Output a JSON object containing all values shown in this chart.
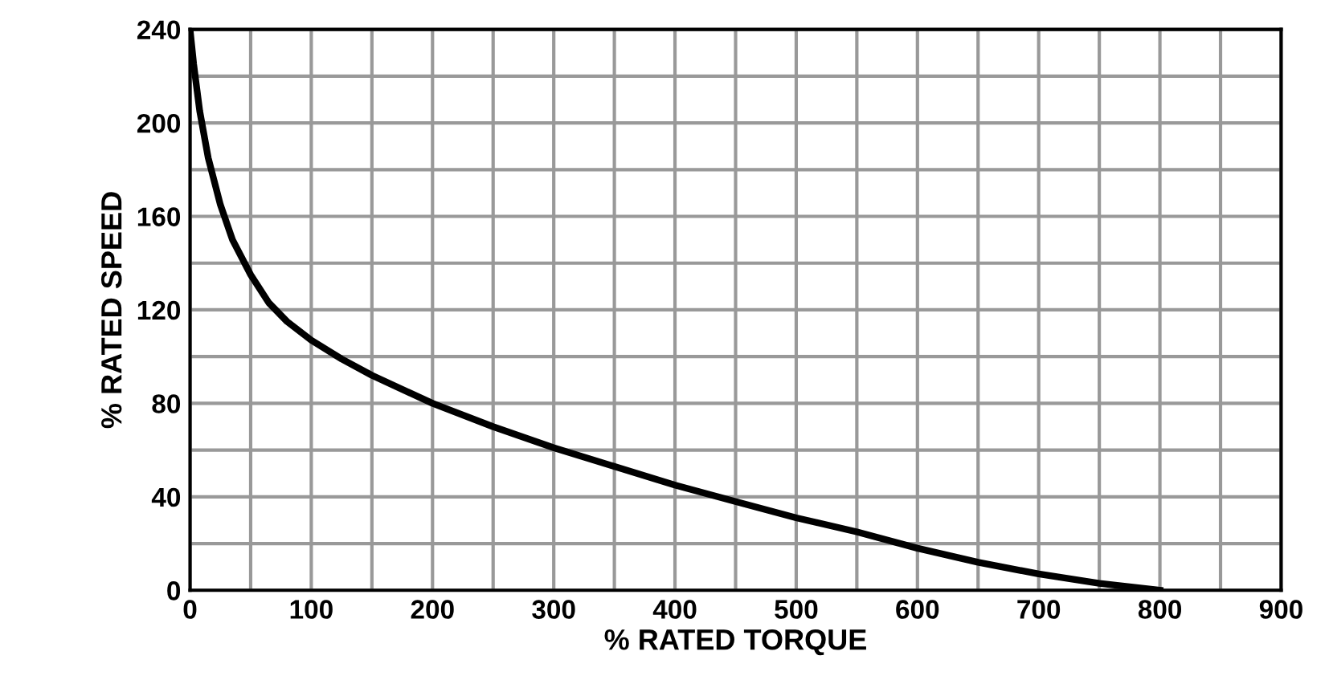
{
  "chart_data": {
    "type": "line",
    "xlabel": "% RATED TORQUE",
    "ylabel": "% RATED SPEED",
    "x": [
      0,
      3,
      8,
      15,
      25,
      35,
      50,
      65,
      80,
      100,
      125,
      150,
      200,
      250,
      300,
      350,
      400,
      450,
      500,
      550,
      600,
      650,
      700,
      750,
      800
    ],
    "series": [
      {
        "color": "#000000",
        "values": [
          240,
          225,
          205,
          185,
          165,
          150,
          135,
          123,
          115,
          107,
          99,
          92,
          80,
          70,
          61,
          53,
          45,
          38,
          31,
          25,
          18,
          12,
          7,
          3,
          0
        ]
      }
    ],
    "xlim": [
      0,
      900
    ],
    "ylim": [
      0,
      240
    ],
    "xticks": [
      0,
      {
        "value": 50,
        "label": null
      },
      100,
      {
        "value": 150,
        "label": null
      },
      200,
      {
        "value": 250,
        "label": null
      },
      300,
      {
        "value": 350,
        "label": null
      },
      400,
      {
        "value": 450,
        "label": null
      },
      500,
      {
        "value": 550,
        "label": null
      },
      600,
      {
        "value": 650,
        "label": null
      },
      700,
      {
        "value": 750,
        "label": null
      },
      800,
      {
        "value": 850,
        "label": null
      },
      900
    ],
    "yticks": [
      0,
      {
        "value": 20,
        "label": null
      },
      40,
      {
        "value": 60,
        "label": null
      },
      80,
      {
        "value": 100,
        "label": null
      },
      120,
      {
        "value": 140,
        "label": null
      },
      160,
      {
        "value": 180,
        "label": null
      },
      200,
      {
        "value": 220,
        "label": null
      },
      240
    ],
    "grid": true,
    "legend": false,
    "marker": "none",
    "line_style": "solid"
  }
}
